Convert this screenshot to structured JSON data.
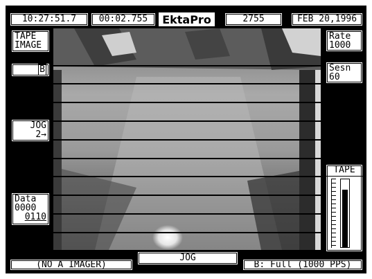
{
  "header": {
    "clock": "10:27:51.7",
    "elapsed": "00:02.755",
    "brand": "EktaPro",
    "frame_count": "2755",
    "date": "FEB 20,1996"
  },
  "left_panel": {
    "tape_image": [
      "TAPE",
      "IMAGE"
    ],
    "b_indicator": "B",
    "jog": [
      "JOG",
      "2→"
    ],
    "data": [
      "Data",
      "0000",
      "0110"
    ]
  },
  "right_panel": {
    "rate": [
      "Rate",
      "1000"
    ],
    "session": [
      "Sesn",
      "60"
    ],
    "tape_label": "TAPE",
    "tape_fill_fraction": 0.85
  },
  "footer": {
    "imager": "(NO A IMAGER)",
    "mode": "JOG",
    "speed": "B: Full (1000 PPS)"
  },
  "colors": {
    "background": "#000000",
    "panel": "#ffffff"
  }
}
